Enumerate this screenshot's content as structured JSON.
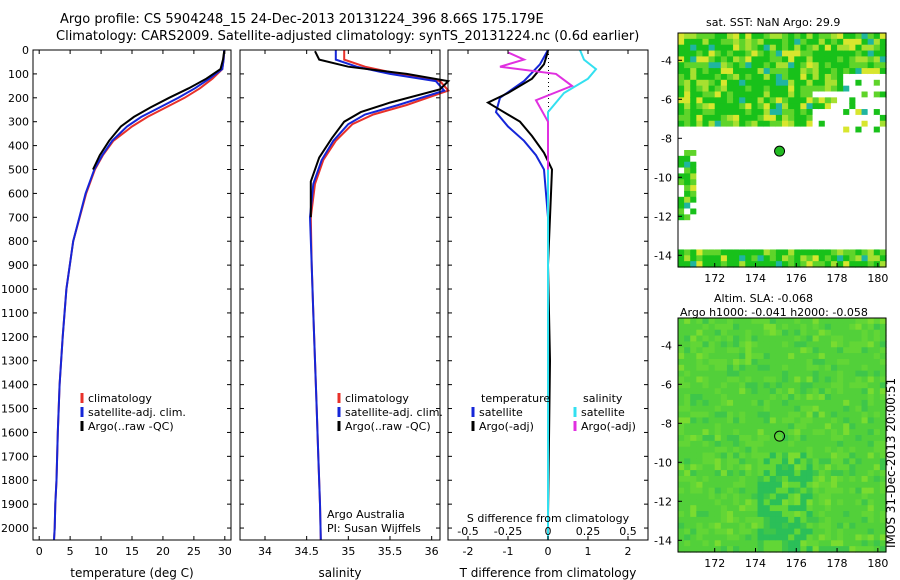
{
  "header": {
    "line1": "Argo profile: CS 5904248_15 24-Dec-2013 20131224_396 8.66S 175.179E",
    "line2": "Climatology: CARS2009. Satellite-adjusted climatology: synTS_20131224.nc (0.6d earlier)"
  },
  "colors": {
    "climatology": "#e8312a",
    "satellite": "#1526d8",
    "argo": "#000000",
    "sal_sat": "#33e0f0",
    "sal_argo": "#e030e0",
    "land": "#ffffff"
  },
  "chart_data": [
    {
      "id": "temperature",
      "type": "line",
      "xlabel": "temperature (deg C)",
      "xlim": [
        -1,
        31
      ],
      "xticks": [
        0,
        5,
        10,
        15,
        20,
        25,
        30
      ],
      "ylim": [
        2050,
        0
      ],
      "yticks": [
        0,
        100,
        200,
        300,
        400,
        500,
        600,
        700,
        800,
        900,
        1000,
        1100,
        1200,
        1300,
        1400,
        1500,
        1600,
        1700,
        1800,
        1900,
        2000
      ],
      "legend": [
        "climatology",
        "satellite-adj. clim.",
        "Argo(..raw -QC)"
      ],
      "series": [
        {
          "name": "climatology",
          "color": "#e8312a",
          "x": [
            29.9,
            29.8,
            29.6,
            28,
            26,
            23.5,
            20.5,
            17.5,
            15,
            12,
            10.3,
            9,
            7.6,
            5.5,
            4.4,
            3.8,
            3.3,
            3,
            2.8,
            2.6,
            2.5,
            2.4
          ],
          "y": [
            0,
            40,
            80,
            120,
            160,
            200,
            240,
            280,
            320,
            380,
            440,
            500,
            600,
            800,
            1000,
            1200,
            1400,
            1600,
            1800,
            1900,
            2000,
            2050
          ]
        },
        {
          "name": "satellite-adj. clim.",
          "color": "#1526d8",
          "x": [
            29.9,
            29.8,
            29.6,
            27.5,
            25.2,
            22.5,
            19.5,
            16.5,
            14.2,
            11.8,
            10.2,
            8.9,
            7.5,
            5.5,
            4.4,
            3.8,
            3.3,
            3,
            2.8,
            2.6,
            2.5,
            2.4
          ],
          "y": [
            0,
            40,
            80,
            120,
            160,
            200,
            240,
            280,
            320,
            380,
            440,
            500,
            600,
            800,
            1000,
            1200,
            1400,
            1600,
            1800,
            1900,
            2000,
            2050
          ]
        },
        {
          "name": "Argo(..raw -QC)",
          "color": "#000000",
          "x": [
            29.9,
            29.7,
            29.3,
            27,
            24.2,
            21,
            18,
            15.3,
            13.2,
            11.3,
            9.8,
            8.7
          ],
          "y": [
            5,
            40,
            80,
            120,
            160,
            200,
            240,
            280,
            320,
            380,
            440,
            500
          ]
        }
      ]
    },
    {
      "id": "salinity",
      "type": "line",
      "xlabel": "salinity",
      "xlim": [
        33.7,
        36.1
      ],
      "xticks": [
        34,
        34.5,
        35,
        35.5,
        36
      ],
      "ylim": [
        2050,
        0
      ],
      "legend": [
        "climatology",
        "satellite-adj. clim.",
        "Argo(..raw -QC)"
      ],
      "annotation": [
        "Argo Australia",
        "PI: Susan Wijffels"
      ],
      "series": [
        {
          "name": "climatology",
          "color": "#e8312a",
          "x": [
            34.95,
            34.95,
            35.2,
            35.6,
            36.1,
            36.2,
            35.7,
            35.3,
            35.05,
            34.85,
            34.7,
            34.6,
            34.55,
            34.56,
            34.58,
            34.6,
            34.62,
            34.64,
            34.66,
            34.67
          ],
          "y": [
            0,
            40,
            70,
            100,
            130,
            170,
            230,
            270,
            310,
            380,
            460,
            560,
            700,
            900,
            1100,
            1300,
            1500,
            1700,
            1900,
            2050
          ]
        },
        {
          "name": "satellite-adj. clim.",
          "color": "#1526d8",
          "x": [
            34.85,
            34.85,
            35.1,
            35.5,
            36.05,
            36.15,
            35.6,
            35.2,
            35,
            34.82,
            34.68,
            34.58,
            34.54,
            34.56,
            34.58,
            34.6,
            34.62,
            34.64,
            34.66,
            34.67
          ],
          "y": [
            0,
            40,
            70,
            100,
            130,
            170,
            230,
            270,
            310,
            380,
            460,
            560,
            700,
            900,
            1100,
            1300,
            1500,
            1700,
            1900,
            2050
          ]
        },
        {
          "name": "Argo(..raw -QC)",
          "color": "#000000",
          "x": [
            34.6,
            34.65,
            35.0,
            35.7,
            36.2,
            36.1,
            35.5,
            35.15,
            34.95,
            34.8,
            34.65,
            34.55,
            34.55
          ],
          "y": [
            5,
            40,
            70,
            100,
            130,
            165,
            220,
            260,
            300,
            370,
            450,
            550,
            700
          ]
        }
      ]
    },
    {
      "id": "difference",
      "type": "line",
      "xlabel": "T difference from climatology",
      "xlabel2": "S difference from climatology",
      "xlim": [
        -2.5,
        2.5
      ],
      "xticks": [
        -2,
        -1,
        0,
        1,
        2
      ],
      "xticks_s": [
        "-0.5",
        "-0.25",
        "0",
        "0.25",
        "0.5"
      ],
      "ylim": [
        2050,
        0
      ],
      "legend": {
        "temperature": "temperature",
        "salinity": "salinity",
        "sat": "satellite",
        "argo": "Argo(-adj)"
      },
      "series": [
        {
          "name": "T satellite",
          "color": "#1526d8",
          "x": [
            0,
            -0.2,
            -0.6,
            -1.2,
            -1.3,
            -1.0,
            -0.6,
            -0.3,
            -0.1,
            0,
            0,
            0
          ],
          "y": [
            0,
            60,
            130,
            200,
            260,
            320,
            380,
            440,
            500,
            700,
            1300,
            2050
          ]
        },
        {
          "name": "T Argo(-adj)",
          "color": "#000000",
          "x": [
            0,
            -0.1,
            -0.4,
            -1.0,
            -1.5,
            -1.2,
            -0.7,
            -0.4,
            -0.1,
            0.1,
            0,
            0.05,
            0
          ],
          "y": [
            5,
            60,
            120,
            180,
            220,
            250,
            300,
            360,
            430,
            500,
            900,
            1300,
            1950
          ]
        },
        {
          "name": "S satellite",
          "color": "#33e0f0",
          "x": [
            0.8,
            0.9,
            1.2,
            1.0,
            0.4,
            0,
            0,
            0,
            0
          ],
          "y": [
            0,
            40,
            80,
            120,
            180,
            260,
            600,
            1300,
            2050
          ]
        },
        {
          "name": "S Argo(-adj)",
          "color": "#e030e0",
          "x": [
            -1.0,
            -0.6,
            -1.2,
            0.2,
            0.6,
            -0.3,
            0,
            0
          ],
          "y": [
            10,
            40,
            70,
            100,
            150,
            210,
            300,
            500
          ]
        }
      ]
    },
    {
      "id": "sst_map",
      "type": "heatmap",
      "title": "sat. SST: NaN Argo: 29.9",
      "xlim": [
        170.2,
        180.4
      ],
      "xticks": [
        172,
        174,
        176,
        178,
        180
      ],
      "ylim": [
        -14.6,
        -2.6
      ],
      "yticks": [
        -4,
        -6,
        -8,
        -10,
        -12,
        -14
      ],
      "marker": {
        "lon": 175.18,
        "lat": -8.66
      }
    },
    {
      "id": "sla_map",
      "type": "heatmap",
      "title1": "Altim. SLA: -0.068",
      "title2": "Argo h1000: -0.041 h2000: -0.058",
      "xlim": [
        170.2,
        180.4
      ],
      "xticks": [
        172,
        174,
        176,
        178,
        180
      ],
      "ylim": [
        -14.6,
        -2.6
      ],
      "yticks": [
        -4,
        -6,
        -8,
        -10,
        -12,
        -14
      ],
      "marker": {
        "lon": 175.18,
        "lat": -8.66
      }
    }
  ],
  "timestamp": "IMOS 31-Dec-2013 20:00:51"
}
